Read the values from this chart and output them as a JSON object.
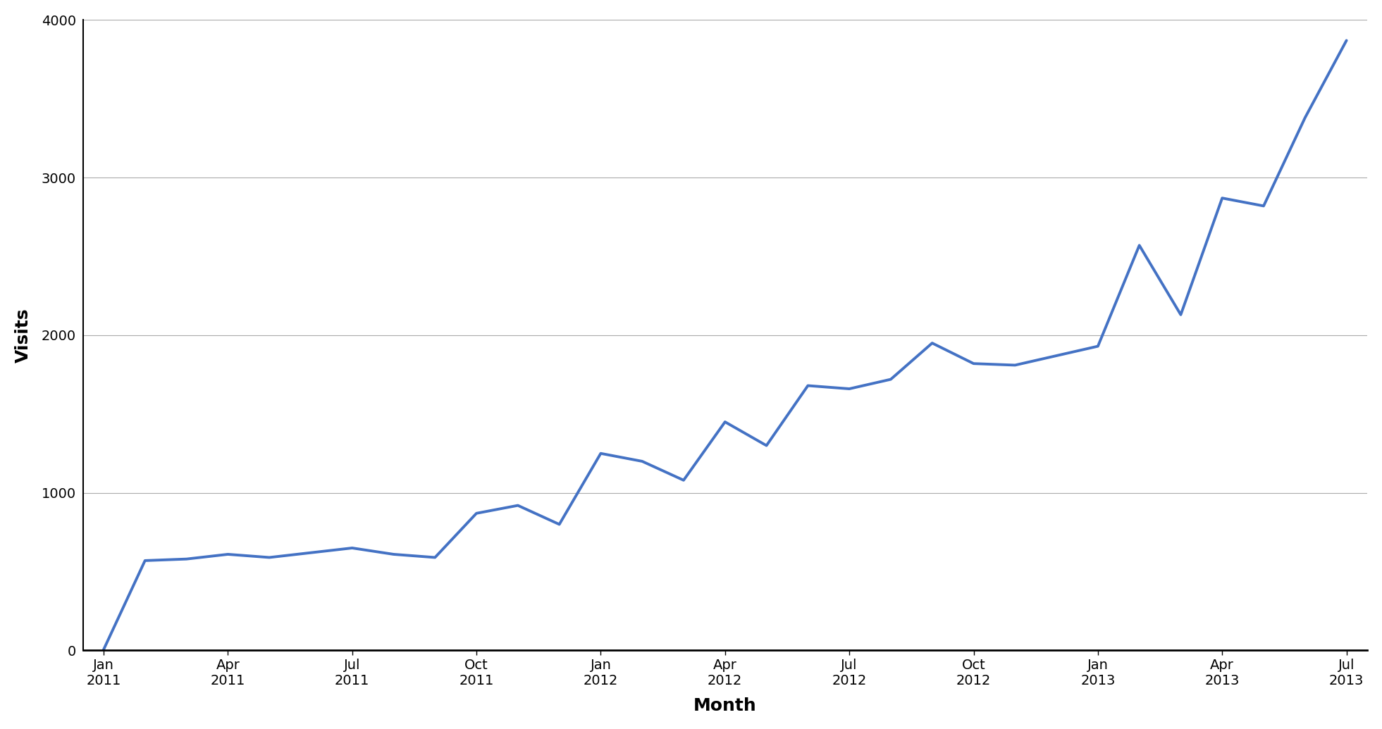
{
  "visits": [
    5,
    570,
    580,
    610,
    590,
    620,
    650,
    610,
    590,
    870,
    920,
    800,
    1250,
    1200,
    1080,
    1450,
    1300,
    1680,
    1660,
    1720,
    1950,
    1820,
    1810,
    1870,
    1930,
    2570,
    2130,
    2870,
    2820,
    3380,
    3870
  ],
  "xlabel": "Month",
  "ylabel": "Visits",
  "ylim": [
    0,
    4000
  ],
  "yticks": [
    0,
    1000,
    2000,
    3000,
    4000
  ],
  "xtick_positions": [
    0,
    3,
    6,
    9,
    12,
    15,
    18,
    21,
    24,
    27,
    30
  ],
  "xtick_labels": [
    "Jan\n2011",
    "Apr\n2011",
    "Jul\n2011",
    "Oct\n2011",
    "Jan\n2012",
    "Apr\n2012",
    "Jul\n2012",
    "Oct\n2012",
    "Jan\n2013",
    "Apr\n2013",
    "Jul\n2013"
  ],
  "line_color": "#4472C4",
  "line_width": 2.8,
  "background_color": "#ffffff",
  "grid_color": "#aaaaaa",
  "axis_color": "#000000",
  "xlabel_fontsize": 18,
  "ylabel_fontsize": 18,
  "tick_fontsize": 14
}
